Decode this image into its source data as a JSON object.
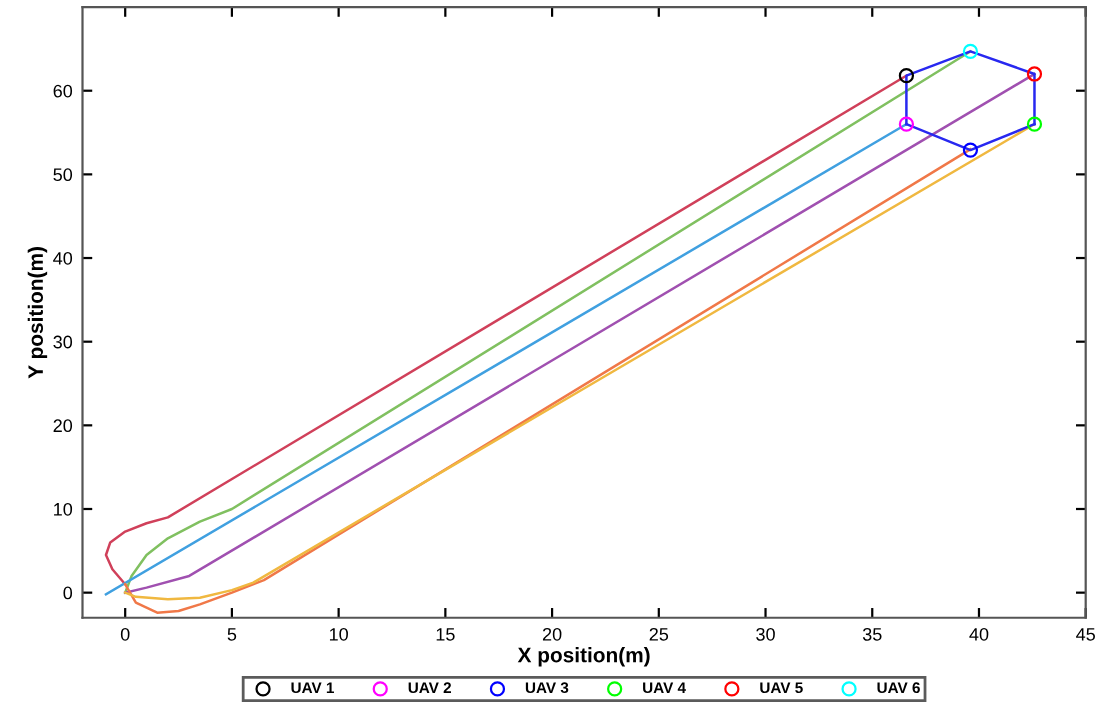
{
  "chart_data": {
    "type": "line",
    "xlabel": "X position(m)",
    "ylabel": "Y position(m)",
    "xlim": [
      -2,
      45
    ],
    "ylim": [
      -3,
      70
    ],
    "xticks": [
      0,
      5,
      10,
      15,
      20,
      25,
      30,
      35,
      40,
      45
    ],
    "yticks": [
      0,
      10,
      20,
      30,
      40,
      50,
      60
    ],
    "grid": false,
    "legend": "bottom",
    "series": [
      {
        "color": "#d0405a",
        "x": [
          0,
          -0.6,
          -0.9,
          -0.7,
          0,
          1,
          2,
          36.6
        ],
        "values": [
          1,
          2.8,
          4.5,
          6,
          7.3,
          8.3,
          9,
          61.8
        ]
      },
      {
        "color": "#80c060",
        "x": [
          0,
          0.3,
          1,
          2,
          3.5,
          5,
          39.6
        ],
        "values": [
          0,
          2,
          4.5,
          6.5,
          8.5,
          10,
          64.7
        ]
      },
      {
        "color": "#40a0e0",
        "x": [
          -0.9,
          36.6
        ],
        "values": [
          -0.2,
          56
        ]
      },
      {
        "color": "#a050b0",
        "x": [
          0,
          1,
          3,
          42.6
        ],
        "values": [
          0,
          0.6,
          2,
          62
        ]
      },
      {
        "color": "#f07848",
        "x": [
          0,
          0.5,
          1.5,
          2.5,
          3.5,
          5,
          6.5,
          39.6
        ],
        "values": [
          1,
          -1.2,
          -2.4,
          -2.2,
          -1.4,
          0,
          1.5,
          53
        ]
      },
      {
        "color": "#f0b840",
        "x": [
          0,
          0.5,
          2,
          3.5,
          5,
          6,
          42.6
        ],
        "values": [
          0,
          -0.5,
          -0.8,
          -0.6,
          0.3,
          1.2,
          56
        ]
      },
      {
        "color": "#2828f0",
        "x": [
          36.6,
          36.6,
          39.6,
          42.6,
          42.6
        ],
        "values": [
          56,
          61.8,
          64.7,
          62,
          56
        ]
      },
      {
        "color": "#2828f0",
        "x": [
          36.6,
          39.6,
          42.6
        ],
        "values": [
          56,
          52.9,
          56
        ]
      },
      {
        "type": "scatter",
        "name": "UAV 1",
        "color": "#000000",
        "marker": "circle",
        "x": [
          36.6
        ],
        "values": [
          61.8
        ]
      },
      {
        "type": "scatter",
        "name": "UAV 2",
        "color": "#ff00ff",
        "marker": "circle",
        "x": [
          36.6
        ],
        "values": [
          56
        ]
      },
      {
        "type": "scatter",
        "name": "UAV 3",
        "color": "#0000ff",
        "marker": "circle",
        "x": [
          39.6
        ],
        "values": [
          52.9
        ]
      },
      {
        "type": "scatter",
        "name": "UAV 4",
        "color": "#00ff00",
        "marker": "circle",
        "x": [
          42.6
        ],
        "values": [
          56
        ]
      },
      {
        "type": "scatter",
        "name": "UAV 5",
        "color": "#ff0000",
        "marker": "circle",
        "x": [
          42.6
        ],
        "values": [
          62
        ]
      },
      {
        "type": "scatter",
        "name": "UAV 6",
        "color": "#00ffff",
        "marker": "circle",
        "x": [
          39.6
        ],
        "values": [
          64.7
        ]
      }
    ]
  }
}
